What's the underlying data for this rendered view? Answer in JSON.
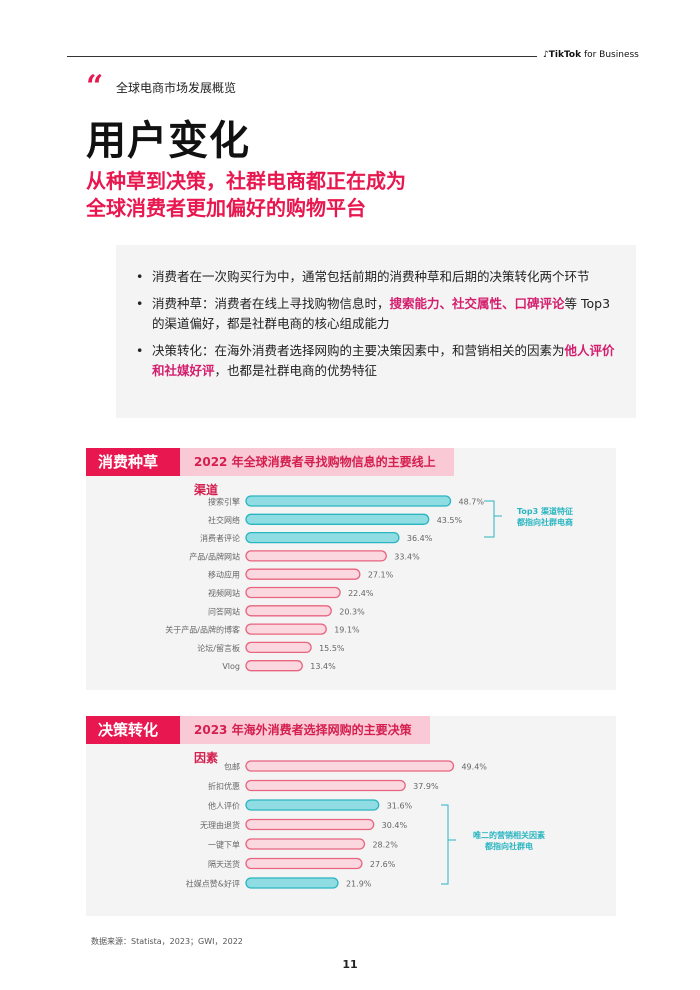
{
  "header": {
    "brand_mark": "TikTok",
    "brand_suffix": " for Business"
  },
  "section_label": "全球电商市场发展概览",
  "title": "用户变化",
  "subtitle": {
    "line1": "从种草到决策，社群电商都正在成为",
    "line2": "全球消费者更加偏好的购物平台"
  },
  "bullets": {
    "b1": "消费者在一次购买行为中，通常包括前期的消费种草和后期的决策转化两个环节",
    "b2_pre": "消费种草：消费者在线上寻找购物信息时，",
    "b2_hl": "搜索能力、社交属性、口碑评论",
    "b2_post": "等 Top3 的渠道偏好，都是社群电商的核心组成能力",
    "b3_pre": "决策转化：在海外消费者选择网购的主要决策因素中，和营销相关的因素为",
    "b3_hl": "他人评价和社媒好评",
    "b3_post": "，也都是社群电商的优势特征"
  },
  "colors": {
    "accent": "#e8174f",
    "teal_fill": "#8fdde2",
    "teal_border": "#2ab5c1",
    "pink_fill": "#fbd7df",
    "pink_border": "#e8647f"
  },
  "chart_data": [
    {
      "type": "bar",
      "tag": "消费种草",
      "title": "2022 年全球消费者寻找购物信息的主要线上渠道",
      "categories": [
        "搜索引擎",
        "社交网络",
        "消费者评论",
        "产品/品牌网站",
        "移动应用",
        "视频网站",
        "问答网站",
        "关于产品/品牌的博客",
        "论坛/留言板",
        "Vlog"
      ],
      "values": [
        48.7,
        43.5,
        36.4,
        33.4,
        27.1,
        22.4,
        20.3,
        19.1,
        15.5,
        13.4
      ],
      "value_labels": [
        "48.7%",
        "43.5%",
        "36.4%",
        "33.4%",
        "27.1%",
        "22.4%",
        "20.3%",
        "19.1%",
        "15.5%",
        "13.4%"
      ],
      "highlighted": [
        0,
        1,
        2
      ],
      "annotation": [
        "Top3 渠道特征",
        "都指向社群电商"
      ]
    },
    {
      "type": "bar",
      "tag": "决策转化",
      "title": "2023 年海外消费者选择网购的主要决策因素",
      "categories": [
        "包邮",
        "折扣优惠",
        "他人评价",
        "无理由退货",
        "一键下单",
        "隔天送货",
        "社媒点赞&好评"
      ],
      "values": [
        49.4,
        37.9,
        31.6,
        30.4,
        28.2,
        27.6,
        21.9
      ],
      "value_labels": [
        "49.4%",
        "37.9%",
        "31.6%",
        "30.4%",
        "28.2%",
        "27.6%",
        "21.9%"
      ],
      "highlighted": [
        2,
        6
      ],
      "annotation": [
        "唯二的营销相关因素",
        "都指向社群电"
      ]
    }
  ],
  "footnote": "数据来源：Statista，2023；GWI，2022",
  "page_number": "11"
}
